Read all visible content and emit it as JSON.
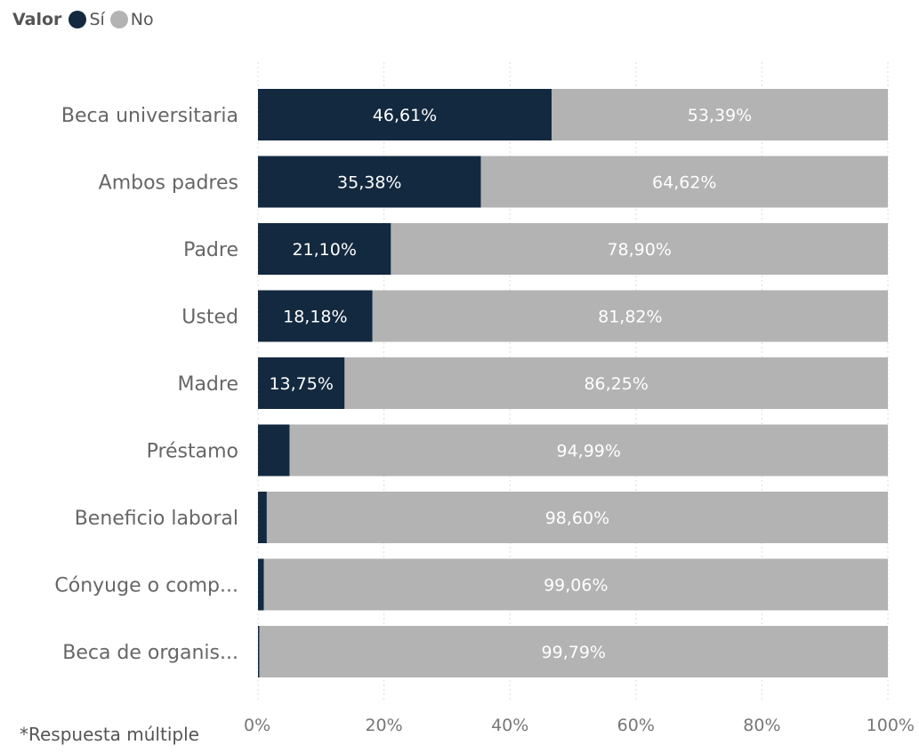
{
  "chart_data": {
    "type": "bar",
    "orientation": "horizontal",
    "stacked": "100%",
    "legend": {
      "title": "Valor",
      "placement": "top-left",
      "entries": [
        {
          "name": "Sí",
          "color": "#13293f"
        },
        {
          "name": "No",
          "color": "#b3b3b3"
        }
      ]
    },
    "categories": [
      "Beca universitaria",
      "Ambos padres",
      "Padre",
      "Usted",
      "Madre",
      "Préstamo",
      "Beneficio laboral",
      "Cónyuge o comp...",
      "Beca de organis..."
    ],
    "series": [
      {
        "name": "Sí",
        "color": "#13293f",
        "values": [
          46.61,
          35.38,
          21.1,
          18.18,
          13.75,
          5.01,
          1.4,
          0.94,
          0.21
        ],
        "labels": [
          "46,61%",
          "35,38%",
          "21,10%",
          "18,18%",
          "13,75%",
          "",
          "",
          "",
          ""
        ]
      },
      {
        "name": "No",
        "color": "#b3b3b3",
        "values": [
          53.39,
          64.62,
          78.9,
          81.82,
          86.25,
          94.99,
          98.6,
          99.06,
          99.79
        ],
        "labels": [
          "53,39%",
          "64,62%",
          "78,90%",
          "81,82%",
          "86,25%",
          "94,99%",
          "98,60%",
          "99,06%",
          "99,79%"
        ]
      }
    ],
    "xlim": [
      0,
      100
    ],
    "x_ticks": [
      "0%",
      "20%",
      "40%",
      "60%",
      "80%",
      "100%"
    ],
    "grid": true,
    "title": "",
    "xlabel": "",
    "ylabel": ""
  },
  "footnote": "*Respuesta múltiple"
}
